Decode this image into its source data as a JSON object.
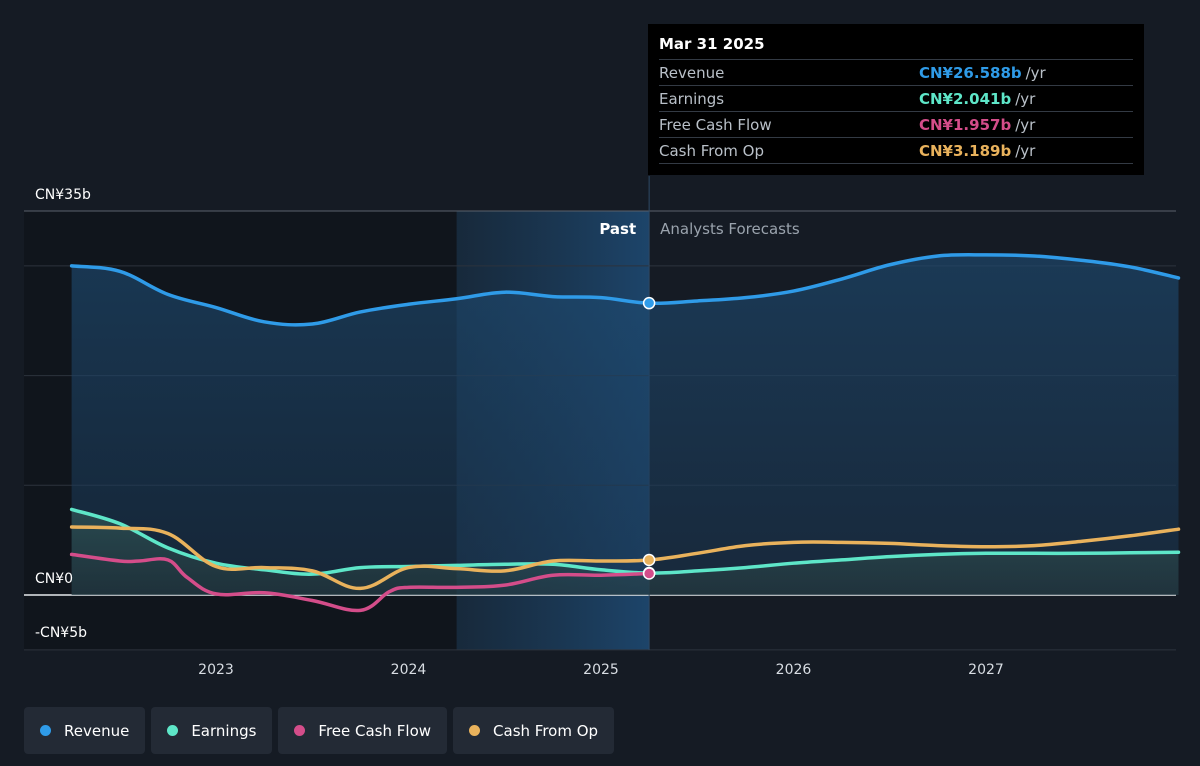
{
  "colors": {
    "revenue": "#2f9be8",
    "earnings": "#5ee6c8",
    "free_cash_flow": "#d44d8a",
    "cash_from_op": "#e9b25c"
  },
  "tooltip": {
    "date": "Mar 31 2025",
    "rows": [
      {
        "name": "Revenue",
        "value": "CN¥26.588b",
        "unit": "/yr",
        "color": "#2f9be8"
      },
      {
        "name": "Earnings",
        "value": "CN¥2.041b",
        "unit": "/yr",
        "color": "#5ee6c8"
      },
      {
        "name": "Free Cash Flow",
        "value": "CN¥1.957b",
        "unit": "/yr",
        "color": "#d44d8a"
      },
      {
        "name": "Cash From Op",
        "value": "CN¥3.189b",
        "unit": "/yr",
        "color": "#e9b25c"
      }
    ]
  },
  "legend": [
    {
      "label": "Revenue",
      "color": "#2f9be8"
    },
    {
      "label": "Earnings",
      "color": "#5ee6c8"
    },
    {
      "label": "Free Cash Flow",
      "color": "#d44d8a"
    },
    {
      "label": "Cash From Op",
      "color": "#e9b25c"
    }
  ],
  "chart_data": {
    "type": "line",
    "title": "",
    "xlabel": "",
    "ylabel": "",
    "ylim": [
      -5,
      35
    ],
    "xlim": [
      2022.0,
      2028.0
    ],
    "y_tick_labels": [
      {
        "value": 35,
        "label": "CN¥35b"
      },
      {
        "value": 0,
        "label": "CN¥0"
      },
      {
        "value": -5,
        "label": "-CN¥5b"
      }
    ],
    "x_tick_labels": [
      {
        "value": 2023.0,
        "label": "2023"
      },
      {
        "value": 2024.0,
        "label": "2024"
      },
      {
        "value": 2025.0,
        "label": "2025"
      },
      {
        "value": 2026.0,
        "label": "2026"
      },
      {
        "value": 2027.0,
        "label": "2027"
      }
    ],
    "gridlines_y": [
      35,
      30,
      20,
      10,
      0,
      -5
    ],
    "past_label": "Past",
    "forecast_label": "Analysts Forecasts",
    "divider_x": 2025.25,
    "highlight_start_x": 2024.25,
    "series": [
      {
        "name": "Revenue",
        "key": "revenue",
        "x": [
          2022.25,
          2022.5,
          2022.75,
          2023.0,
          2023.25,
          2023.5,
          2023.75,
          2024.0,
          2024.25,
          2024.5,
          2024.75,
          2025.0,
          2025.25,
          2025.5,
          2025.75,
          2026.0,
          2026.25,
          2026.5,
          2026.75,
          2027.0,
          2027.25,
          2027.5,
          2027.75,
          2028.0
        ],
        "y": [
          30.0,
          29.5,
          27.4,
          26.2,
          24.9,
          24.7,
          25.8,
          26.5,
          27.0,
          27.6,
          27.2,
          27.1,
          26.6,
          26.8,
          27.1,
          27.7,
          28.8,
          30.1,
          30.9,
          31.0,
          30.9,
          30.5,
          29.9,
          28.9
        ]
      },
      {
        "name": "Earnings",
        "key": "earnings",
        "x": [
          2022.25,
          2022.5,
          2022.75,
          2023.0,
          2023.25,
          2023.5,
          2023.75,
          2024.0,
          2024.25,
          2024.5,
          2024.75,
          2025.0,
          2025.25,
          2025.5,
          2025.75,
          2026.0,
          2026.25,
          2026.5,
          2026.75,
          2027.0,
          2027.25,
          2027.5,
          2027.75,
          2028.0
        ],
        "y": [
          7.8,
          6.5,
          4.3,
          2.9,
          2.3,
          1.9,
          2.5,
          2.6,
          2.7,
          2.8,
          2.8,
          2.3,
          2.0,
          2.2,
          2.5,
          2.9,
          3.2,
          3.5,
          3.7,
          3.8,
          3.8,
          3.8,
          3.85,
          3.9
        ]
      },
      {
        "name": "Free Cash Flow",
        "key": "free_cash_flow",
        "x": [
          2022.25,
          2022.5,
          2022.6,
          2022.75,
          2022.85,
          2023.0,
          2023.25,
          2023.5,
          2023.75,
          2023.9,
          2024.0,
          2024.25,
          2024.5,
          2024.75,
          2025.0,
          2025.25
        ],
        "y": [
          3.7,
          3.1,
          3.1,
          3.2,
          1.6,
          0.1,
          0.2,
          -0.5,
          -1.4,
          0.3,
          0.7,
          0.7,
          0.9,
          1.8,
          1.8,
          1.96
        ]
      },
      {
        "name": "Cash From Op",
        "key": "cash_from_op",
        "x": [
          2022.25,
          2022.5,
          2022.75,
          2023.0,
          2023.25,
          2023.5,
          2023.75,
          2024.0,
          2024.25,
          2024.5,
          2024.75,
          2025.0,
          2025.25,
          2025.5,
          2025.75,
          2026.0,
          2026.25,
          2026.5,
          2026.75,
          2027.0,
          2027.25,
          2027.5,
          2027.75,
          2028.0
        ],
        "y": [
          6.2,
          6.1,
          5.6,
          2.6,
          2.5,
          2.2,
          0.6,
          2.5,
          2.4,
          2.2,
          3.1,
          3.1,
          3.19,
          3.8,
          4.5,
          4.8,
          4.8,
          4.7,
          4.5,
          4.4,
          4.5,
          4.9,
          5.4,
          6.0
        ]
      }
    ]
  }
}
